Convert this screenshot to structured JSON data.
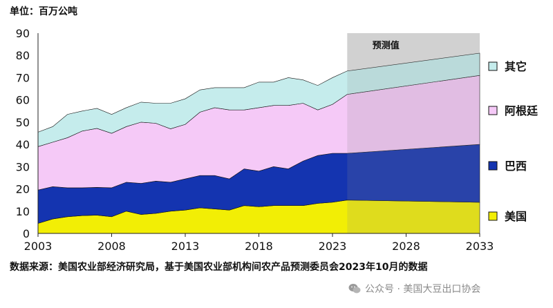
{
  "unit_label": "单位：百万公吨",
  "source_note": "数据来源：美国农业部经济研究局，基于美国农业部机构间农产品预测委员会2023年10月的数据",
  "watermark": "公众号 · 美国大豆出口协会",
  "chart_data": {
    "type": "area",
    "stacked": true,
    "ylim": [
      0,
      90
    ],
    "yticks": [
      0,
      10,
      20,
      30,
      40,
      50,
      60,
      70,
      80,
      90
    ],
    "xlim": [
      2003,
      2033
    ],
    "xticks": [
      2003,
      2008,
      2013,
      2018,
      2023,
      2028,
      2033
    ],
    "projection": {
      "label": "预测值",
      "start": 2024,
      "end": 2033
    },
    "x": [
      2003,
      2004,
      2005,
      2006,
      2007,
      2008,
      2009,
      2010,
      2011,
      2012,
      2013,
      2014,
      2015,
      2016,
      2017,
      2018,
      2019,
      2020,
      2021,
      2022,
      2023,
      2024,
      2033
    ],
    "series": [
      {
        "name": "美国",
        "color": "#f2ee05",
        "values": [
          4.5,
          6.5,
          7.5,
          8.0,
          8.2,
          7.5,
          10.0,
          8.5,
          9.0,
          10.0,
          10.5,
          11.5,
          11.0,
          10.5,
          12.5,
          12.0,
          12.5,
          12.5,
          12.5,
          13.5,
          14.0,
          15.0,
          14.0
        ]
      },
      {
        "name": "巴西",
        "color": "#1434b0",
        "values": [
          15.0,
          14.5,
          13.0,
          12.5,
          12.5,
          13.0,
          13.0,
          14.0,
          14.5,
          13.0,
          14.0,
          14.5,
          15.0,
          14.0,
          16.5,
          16.0,
          17.5,
          16.5,
          20.0,
          21.5,
          22.0,
          21.0,
          26.0
        ]
      },
      {
        "name": "阿根廷",
        "color": "#f5c9f7",
        "values": [
          19.5,
          20.0,
          22.5,
          25.5,
          26.5,
          24.5,
          25.0,
          27.5,
          26.0,
          24.0,
          24.5,
          28.5,
          30.5,
          31.0,
          26.5,
          28.5,
          27.5,
          28.5,
          26.0,
          20.5,
          22.0,
          26.5,
          31.0
        ]
      },
      {
        "name": "其它",
        "color": "#c5ecec",
        "values": [
          6.5,
          7.0,
          10.5,
          9.0,
          9.0,
          8.5,
          8.5,
          9.0,
          9.0,
          11.5,
          11.5,
          10.0,
          9.0,
          10.0,
          10.0,
          11.5,
          10.5,
          12.5,
          10.5,
          11.0,
          12.0,
          10.5,
          10.0
        ]
      }
    ],
    "legend_order": [
      "其它",
      "阿根廷",
      "巴西",
      "美国"
    ],
    "legend_position": "right"
  }
}
